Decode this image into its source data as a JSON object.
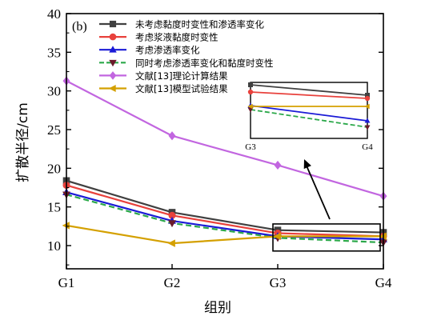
{
  "chart_data": {
    "type": "line",
    "panel_label": "(b)",
    "xlabel": "组别",
    "ylabel": "扩散半径/cm",
    "categories": [
      "G1",
      "G2",
      "G3",
      "G4"
    ],
    "ylim": [
      7,
      40
    ],
    "yticks": [
      10,
      15,
      20,
      25,
      30,
      35,
      40
    ],
    "grid": false,
    "legend_position": "top-left",
    "series": [
      {
        "name": "未考虑黏度时变性和渗透率变化",
        "values": [
          18.4,
          14.3,
          12.0,
          11.7
        ],
        "color": "#404040",
        "marker": "square",
        "dash": "solid"
      },
      {
        "name": "考虑浆液黏度时变性",
        "values": [
          17.8,
          13.9,
          11.6,
          11.2
        ],
        "color": "#e8413c",
        "marker": "circle",
        "dash": "solid"
      },
      {
        "name": "考虑渗透率变化",
        "values": [
          16.9,
          13.2,
          11.2,
          10.8
        ],
        "color": "#1a1ad6",
        "marker": "triangle-up",
        "dash": "solid"
      },
      {
        "name": "同时考虑渗透率变化和黏度时变性",
        "values": [
          16.6,
          12.9,
          11.0,
          10.4
        ],
        "color": "#2ba84a",
        "marker": "triangle-down",
        "marker_color": "#6b1a2a",
        "dash": "dashed"
      },
      {
        "name": "文献[13]理论计算结果",
        "values": [
          31.3,
          24.2,
          20.4,
          16.4
        ],
        "color": "#c266e0",
        "marker": "diamond",
        "dash": "solid"
      },
      {
        "name": "文献[13]模型试验结果",
        "values": [
          12.6,
          10.3,
          11.2,
          11.2
        ],
        "color": "#d4a000",
        "marker": "triangle-left",
        "dash": "solid"
      }
    ],
    "inset": {
      "categories": [
        "G3",
        "G4"
      ],
      "zoom_region": "G3–G4"
    }
  }
}
